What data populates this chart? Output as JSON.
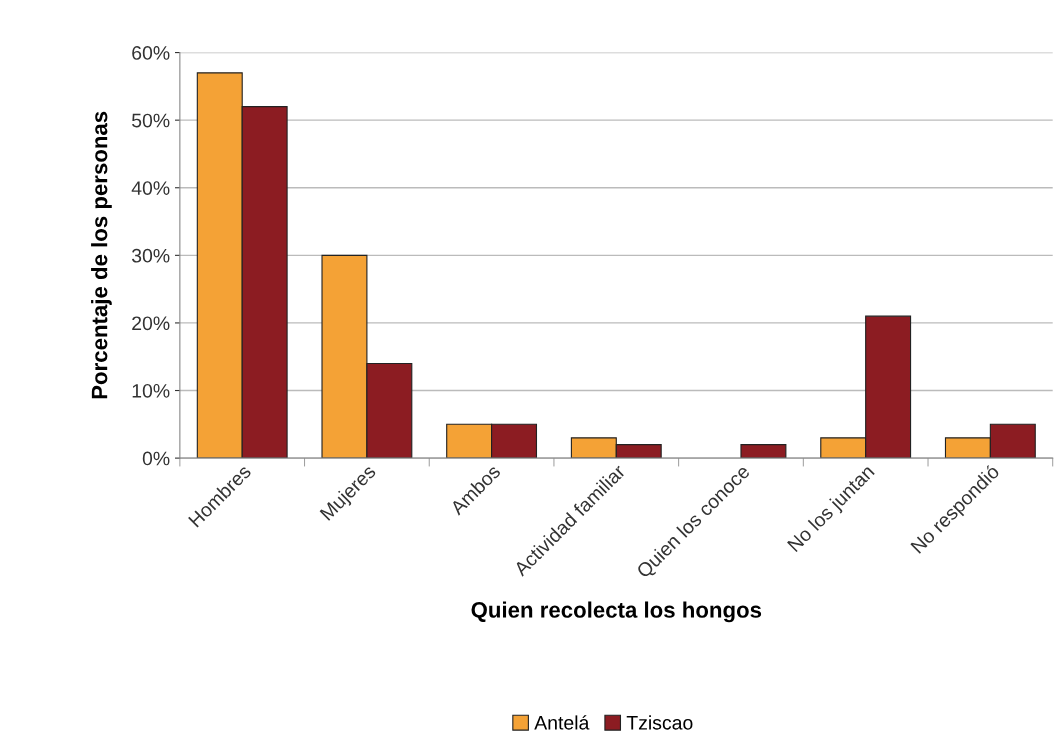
{
  "chart_data": {
    "type": "bar",
    "xlabel": "Quien recolecta los hongos",
    "ylabel": "Porcentaje de los personas",
    "categories": [
      "Hombres",
      "Mujeres",
      "Ambos",
      "Actividad familiar",
      "Quien los conoce",
      "No los juntan",
      "No respondió"
    ],
    "series": [
      {
        "name": "Antelá",
        "color": "#f4a236",
        "values": [
          57,
          30,
          5,
          3,
          0,
          3,
          3
        ]
      },
      {
        "name": "Tziscao",
        "color": "#8c1c22",
        "values": [
          52,
          14,
          5,
          2,
          2,
          21,
          5
        ]
      }
    ],
    "ylim": [
      0,
      60
    ],
    "yticks": [
      {
        "value": 0,
        "label": "0%"
      },
      {
        "value": 10,
        "label": "10%"
      },
      {
        "value": 20,
        "label": "20%"
      },
      {
        "value": 30,
        "label": "30%"
      },
      {
        "value": 40,
        "label": "40%"
      },
      {
        "value": 50,
        "label": "50%"
      },
      {
        "value": 60,
        "label": "60%"
      }
    ],
    "grid": "y",
    "legend": "bottom"
  }
}
